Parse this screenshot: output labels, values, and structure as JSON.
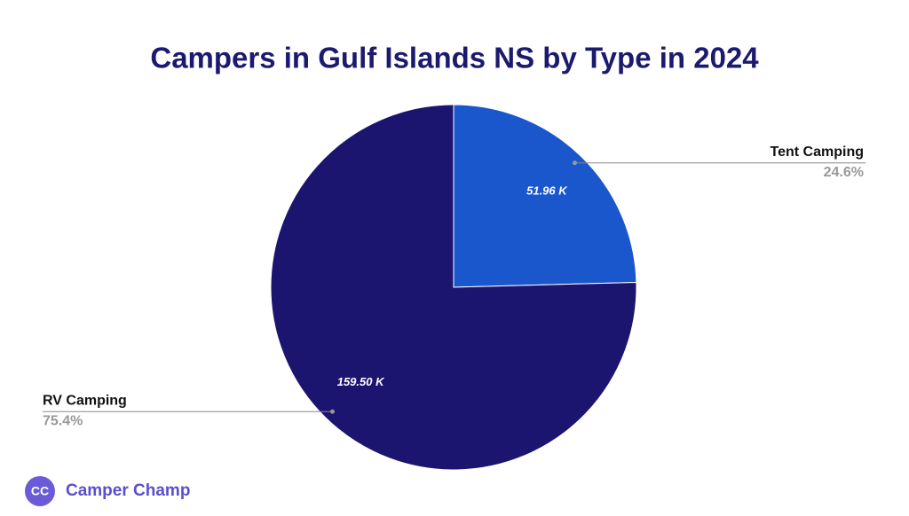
{
  "chart_data": {
    "type": "pie",
    "title": "Campers in Gulf Islands NS by Type in 2024",
    "categories": [
      "Tent Camping",
      "RV Camping"
    ],
    "values": [
      51.96,
      159.5
    ],
    "value_labels": [
      "51.96 K",
      "159.50 K"
    ],
    "percentages": [
      24.6,
      75.4
    ],
    "percentage_labels": [
      "24.6%",
      "75.4%"
    ],
    "colors": [
      "#1a56cc",
      "#1c1570"
    ]
  },
  "brand": {
    "logo": "CC",
    "name": "Camper Champ"
  }
}
